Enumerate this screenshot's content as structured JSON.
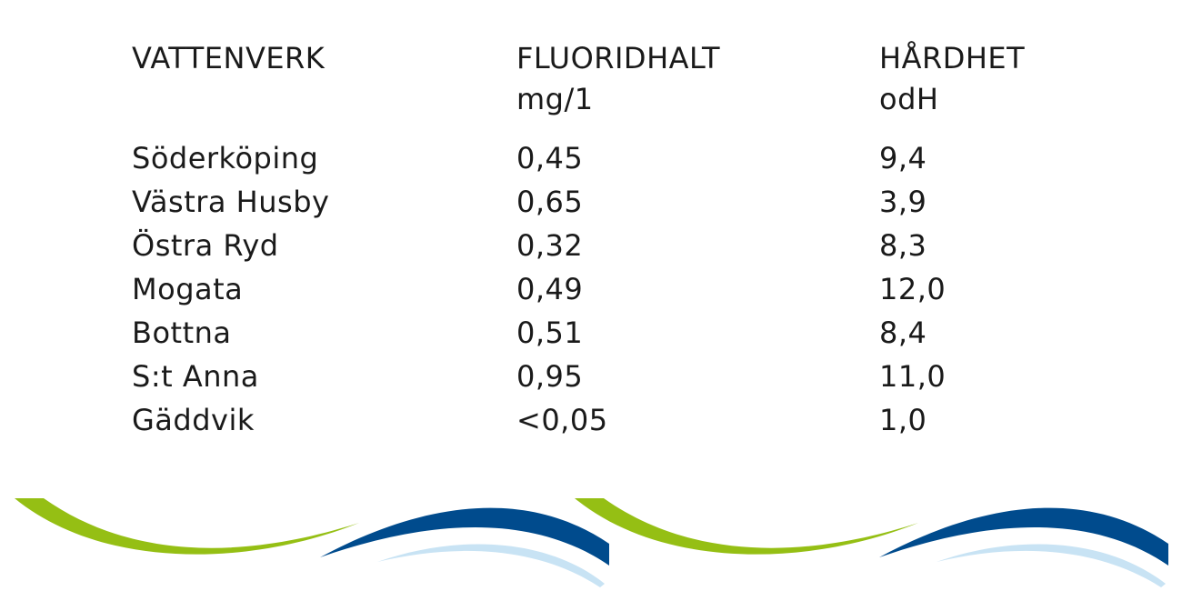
{
  "table": {
    "headers": [
      {
        "line1": "VATTENVERK",
        "line2": ""
      },
      {
        "line1": "FLUORIDHALT",
        "line2": "mg/1"
      },
      {
        "line1": "HÅRDHET",
        "line2": "odH"
      }
    ],
    "rows": [
      [
        "Söderköping",
        "0,45",
        "9,4"
      ],
      [
        "Västra Husby",
        "0,65",
        "3,9"
      ],
      [
        "Östra Ryd",
        "0,32",
        "8,3"
      ],
      [
        "Mogata",
        "0,49",
        "12,0"
      ],
      [
        "Bottna",
        "0,51",
        "8,4"
      ],
      [
        "S:t Anna",
        "0,95",
        "11,0"
      ],
      [
        "Gäddvik",
        "<0,05",
        "1,0"
      ]
    ]
  },
  "colors": {
    "text": "#1a1a1a",
    "wave_green": "#95bf14",
    "wave_dark_blue": "#004b8d",
    "wave_light_blue": "#c8e3f4"
  }
}
